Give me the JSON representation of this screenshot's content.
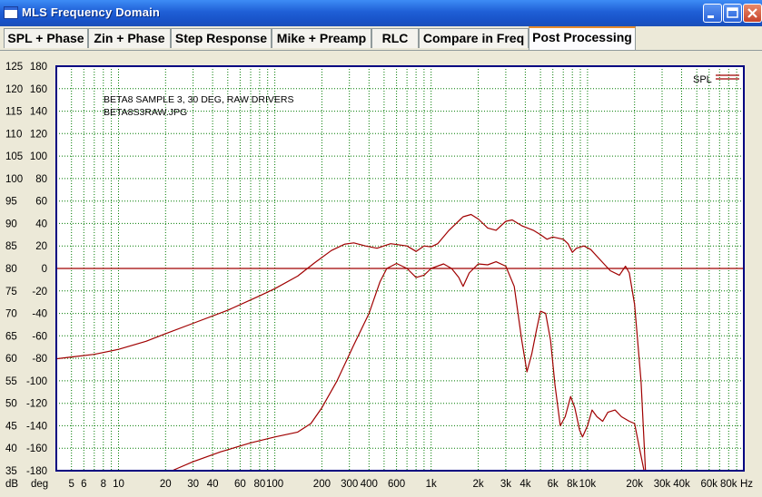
{
  "window": {
    "title": "MLS Frequency Domain"
  },
  "tabs": [
    {
      "label": "SPL + Phase"
    },
    {
      "label": "Zin + Phase"
    },
    {
      "label": "Step Response"
    },
    {
      "label": "Mike + Preamp"
    },
    {
      "label": "RLC"
    },
    {
      "label": "Compare in Freq"
    },
    {
      "label": "Post Processing"
    }
  ],
  "active_tab": "Post Processing",
  "plot": {
    "notes": [
      "BETA8 SAMPLE 3, 30 DEG, RAW DRIVERS",
      "BETA8S3RAW.JPG"
    ],
    "db_unit": "dB",
    "deg_unit": "deg",
    "x_unit": "Hz"
  },
  "chart_data": {
    "type": "line",
    "x_scale": "log",
    "xlim": [
      4,
      100000
    ],
    "x_ticks": [
      {
        "v": 5,
        "label": "5"
      },
      {
        "v": 6,
        "label": "6"
      },
      {
        "v": 8,
        "label": "8"
      },
      {
        "v": 10,
        "label": "10"
      },
      {
        "v": 20,
        "label": "20"
      },
      {
        "v": 30,
        "label": "30"
      },
      {
        "v": 40,
        "label": "40"
      },
      {
        "v": 60,
        "label": "60"
      },
      {
        "v": 80,
        "label": "80"
      },
      {
        "v": 100,
        "label": "100"
      },
      {
        "v": 200,
        "label": "200"
      },
      {
        "v": 300,
        "label": "300"
      },
      {
        "v": 400,
        "label": "400"
      },
      {
        "v": 600,
        "label": "600"
      },
      {
        "v": 1000,
        "label": "1k"
      },
      {
        "v": 2000,
        "label": "2k"
      },
      {
        "v": 3000,
        "label": "3k"
      },
      {
        "v": 4000,
        "label": "4k"
      },
      {
        "v": 6000,
        "label": "6k"
      },
      {
        "v": 8000,
        "label": "8k"
      },
      {
        "v": 10000,
        "label": "10k"
      },
      {
        "v": 20000,
        "label": "20k"
      },
      {
        "v": 30000,
        "label": "30k"
      },
      {
        "v": 40000,
        "label": "40k"
      },
      {
        "v": 60000,
        "label": "60k"
      },
      {
        "v": 80000,
        "label": "80k"
      },
      {
        "v": 100000,
        "label": "Hz"
      }
    ],
    "y_left": {
      "label": "dB",
      "lim": [
        35,
        125
      ],
      "ticks": [
        125,
        120,
        115,
        110,
        105,
        100,
        95,
        90,
        85,
        80,
        75,
        70,
        65,
        60,
        55,
        50,
        45,
        40,
        35
      ]
    },
    "y_right": {
      "label": "deg",
      "lim": [
        -180,
        180
      ],
      "ticks": [
        180,
        160,
        140,
        120,
        100,
        80,
        60,
        40,
        20,
        0,
        -20,
        -40,
        -60,
        -80,
        -100,
        -120,
        -140,
        -160,
        -180
      ]
    },
    "grid": true,
    "legend": {
      "position": "top-right",
      "entries": [
        "SPL"
      ]
    },
    "series": [
      {
        "name": "SPL",
        "axis": "db",
        "color": "#a00000",
        "points": [
          [
            4,
            59.9
          ],
          [
            5,
            60.3
          ],
          [
            7,
            60.9
          ],
          [
            10,
            62.0
          ],
          [
            15,
            63.8
          ],
          [
            20,
            65.5
          ],
          [
            30,
            67.8
          ],
          [
            50,
            70.7
          ],
          [
            80,
            73.9
          ],
          [
            100,
            75.5
          ],
          [
            140,
            78.3
          ],
          [
            180,
            81.3
          ],
          [
            230,
            84.0
          ],
          [
            280,
            85.4
          ],
          [
            320,
            85.7
          ],
          [
            380,
            85.0
          ],
          [
            450,
            84.5
          ],
          [
            550,
            85.5
          ],
          [
            700,
            85.0
          ],
          [
            800,
            83.8
          ],
          [
            900,
            85.0
          ],
          [
            1000,
            84.8
          ],
          [
            1100,
            85.5
          ],
          [
            1300,
            88.5
          ],
          [
            1600,
            91.5
          ],
          [
            1800,
            92.0
          ],
          [
            2000,
            91.0
          ],
          [
            2300,
            89.0
          ],
          [
            2600,
            88.5
          ],
          [
            3000,
            90.5
          ],
          [
            3300,
            90.8
          ],
          [
            3800,
            89.5
          ],
          [
            4500,
            88.5
          ],
          [
            5000,
            87.5
          ],
          [
            5500,
            86.5
          ],
          [
            6000,
            87.0
          ],
          [
            7000,
            86.5
          ],
          [
            7500,
            85.5
          ],
          [
            8000,
            83.6
          ],
          [
            8500,
            84.5
          ],
          [
            9500,
            85.0
          ],
          [
            10500,
            84.2
          ],
          [
            12000,
            82.0
          ],
          [
            14000,
            79.5
          ],
          [
            16000,
            78.5
          ],
          [
            17500,
            80.5
          ],
          [
            18500,
            79.0
          ],
          [
            20000,
            72.0
          ],
          [
            22000,
            55.0
          ],
          [
            23500,
            35.0
          ]
        ]
      },
      {
        "name": "",
        "axis": "db",
        "color": "#a00000",
        "points": [
          [
            22,
            35.0
          ],
          [
            30,
            37.0
          ],
          [
            45,
            39.2
          ],
          [
            70,
            41.2
          ],
          [
            100,
            42.5
          ],
          [
            140,
            43.6
          ],
          [
            170,
            45.5
          ],
          [
            200,
            49.0
          ],
          [
            250,
            55.0
          ],
          [
            320,
            63.0
          ],
          [
            400,
            70.0
          ],
          [
            470,
            77.0
          ],
          [
            520,
            80.0
          ],
          [
            600,
            81.1
          ],
          [
            700,
            80.0
          ],
          [
            800,
            78.0
          ],
          [
            900,
            78.5
          ],
          [
            1000,
            80.0
          ],
          [
            1200,
            81.0
          ],
          [
            1350,
            80.0
          ],
          [
            1500,
            78.0
          ],
          [
            1600,
            76.0
          ],
          [
            1750,
            79.0
          ],
          [
            2000,
            81.0
          ],
          [
            2300,
            80.8
          ],
          [
            2600,
            81.5
          ],
          [
            3000,
            80.5
          ],
          [
            3400,
            76.0
          ],
          [
            3800,
            64.0
          ],
          [
            4100,
            57.0
          ],
          [
            4400,
            61.0
          ],
          [
            4700,
            66.0
          ],
          [
            5000,
            70.5
          ],
          [
            5400,
            70.0
          ],
          [
            5800,
            64.0
          ],
          [
            6200,
            54.0
          ],
          [
            6700,
            45.0
          ],
          [
            7200,
            47.0
          ],
          [
            7800,
            51.5
          ],
          [
            8300,
            49.0
          ],
          [
            8900,
            44.0
          ],
          [
            9300,
            42.5
          ],
          [
            10000,
            45.0
          ],
          [
            10700,
            48.5
          ],
          [
            11500,
            47.0
          ],
          [
            12500,
            46.0
          ],
          [
            13500,
            48.0
          ],
          [
            15000,
            48.5
          ],
          [
            16500,
            47.0
          ],
          [
            18500,
            46.0
          ],
          [
            20000,
            45.5
          ],
          [
            21500,
            40.0
          ],
          [
            23000,
            35.0
          ]
        ]
      },
      {
        "name": "",
        "axis": "db",
        "color": "#a00000",
        "points": [
          [
            4,
            80.0
          ],
          [
            100000,
            80.0
          ]
        ]
      }
    ]
  }
}
